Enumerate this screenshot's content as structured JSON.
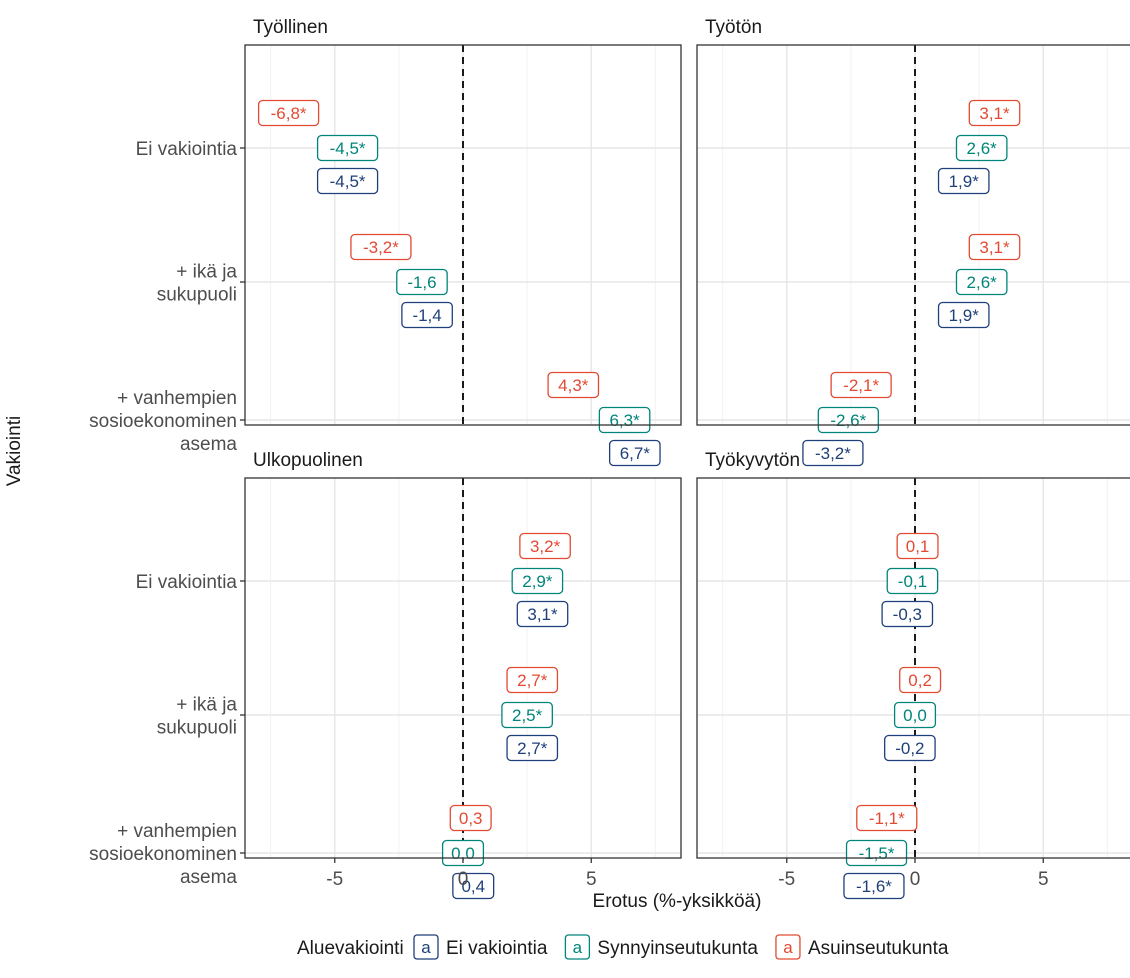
{
  "chart_data": {
    "type": "label-dotplot",
    "xlabel": "Erotus (%-yksikköä)",
    "ylabel": "Vakiointi",
    "xlim": [
      -8.5,
      8.5
    ],
    "x_ticks": [
      -5,
      0,
      5
    ],
    "x_tick_labels": [
      "-5",
      "0",
      "5"
    ],
    "reference_line": 0,
    "grid": true,
    "categories": [
      {
        "lines": [
          "Ei vakiointia"
        ]
      },
      {
        "lines": [
          "+ ikä ja",
          "sukupuoli"
        ]
      },
      {
        "lines": [
          "+ vanhempien",
          "sosioekonominen",
          "asema"
        ]
      }
    ],
    "series": [
      {
        "name": "Asuinseutukunta",
        "color": "#e34a33"
      },
      {
        "name": "Synnyinseutukunta",
        "color": "#00857a"
      },
      {
        "name": "Ei vakiointia",
        "color": "#1f3f7a"
      }
    ],
    "facets": [
      {
        "title": "Työllinen",
        "values": [
          [
            -6.8,
            -4.5,
            -4.5
          ],
          [
            -3.2,
            -1.6,
            -1.4
          ],
          [
            4.3,
            6.3,
            6.7
          ]
        ],
        "labels": [
          [
            "-6,8*",
            "-4,5*",
            "-4,5*"
          ],
          [
            "-3,2*",
            "-1,6",
            "-1,4"
          ],
          [
            "4,3*",
            "6,3*",
            "6,7*"
          ]
        ]
      },
      {
        "title": "Työtön",
        "values": [
          [
            3.1,
            2.6,
            1.9
          ],
          [
            3.1,
            2.6,
            1.9
          ],
          [
            -2.1,
            -2.6,
            -3.2
          ]
        ],
        "labels": [
          [
            "3,1*",
            "2,6*",
            "1,9*"
          ],
          [
            "3,1*",
            "2,6*",
            "1,9*"
          ],
          [
            "-2,1*",
            "-2,6*",
            "-3,2*"
          ]
        ]
      },
      {
        "title": "Ulkopuolinen",
        "values": [
          [
            3.2,
            2.9,
            3.1
          ],
          [
            2.7,
            2.5,
            2.7
          ],
          [
            0.3,
            0.0,
            0.4
          ]
        ],
        "labels": [
          [
            "3,2*",
            "2,9*",
            "3,1*"
          ],
          [
            "2,7*",
            "2,5*",
            "2,7*"
          ],
          [
            "0,3",
            "0,0",
            "0,4"
          ]
        ]
      },
      {
        "title": "Työkyvytön",
        "values": [
          [
            0.1,
            -0.1,
            -0.3
          ],
          [
            0.2,
            0.0,
            -0.2
          ],
          [
            -1.1,
            -1.5,
            -1.6
          ]
        ],
        "labels": [
          [
            "0,1",
            "-0,1",
            "-0,3"
          ],
          [
            "0,2",
            "0,0",
            "-0,2"
          ],
          [
            "-1,1*",
            "-1,5*",
            "-1,6*"
          ]
        ]
      }
    ],
    "legend": {
      "title": "Aluevakiointi",
      "position": "bottom",
      "key_glyph": "a",
      "items": [
        {
          "label": "Ei vakiointia",
          "color": "#1f3f7a"
        },
        {
          "label": "Synnyinseutukunta",
          "color": "#00857a"
        },
        {
          "label": "Asuinseutukunta",
          "color": "#e34a33"
        }
      ]
    }
  }
}
